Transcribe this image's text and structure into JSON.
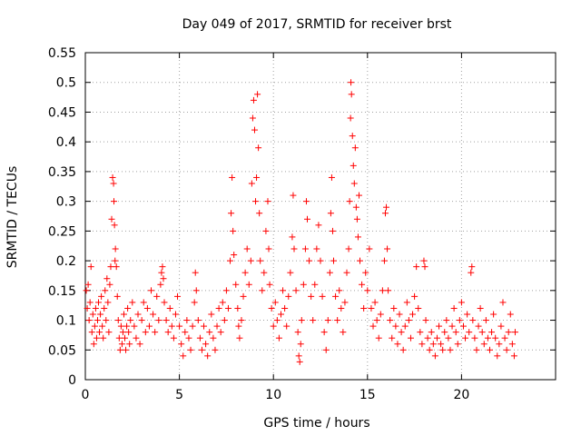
{
  "chart_data": {
    "type": "scatter",
    "title": "Day 049 of 2017, SRMTID for receiver brst",
    "xlabel": "GPS time / hours",
    "ylabel": "SRMTID / TECUs",
    "xlim": [
      0,
      25
    ],
    "ylim": [
      0,
      0.55
    ],
    "xticks": [
      0,
      5,
      10,
      15,
      20
    ],
    "xtick_labels": [
      "0",
      "5",
      "10",
      "15",
      "20"
    ],
    "yticks": [
      0,
      0.05,
      0.1,
      0.15,
      0.2,
      0.25,
      0.3,
      0.35,
      0.4,
      0.45,
      0.5,
      0.55
    ],
    "ytick_labels": [
      "0",
      "0.05",
      "0.1",
      "0.15",
      "0.2",
      "0.25",
      "0.3",
      "0.35",
      "0.4",
      "0.45",
      "0.5",
      "0.55"
    ],
    "grid": true,
    "marker": "+",
    "color": "#ff0000",
    "series": [
      {
        "name": "SRMTID",
        "points": [
          [
            0.05,
            0.15
          ],
          [
            0.1,
            0.12
          ],
          [
            0.15,
            0.16
          ],
          [
            0.2,
            0.1
          ],
          [
            0.25,
            0.13
          ],
          [
            0.3,
            0.19
          ],
          [
            0.35,
            0.08
          ],
          [
            0.4,
            0.11
          ],
          [
            0.45,
            0.06
          ],
          [
            0.5,
            0.09
          ],
          [
            0.55,
            0.12
          ],
          [
            0.6,
            0.07
          ],
          [
            0.65,
            0.1
          ],
          [
            0.7,
            0.13
          ],
          [
            0.75,
            0.08
          ],
          [
            0.8,
            0.11
          ],
          [
            0.85,
            0.14
          ],
          [
            0.9,
            0.09
          ],
          [
            0.95,
            0.07
          ],
          [
            1.0,
            0.12
          ],
          [
            1.05,
            0.15
          ],
          [
            1.1,
            0.1
          ],
          [
            1.15,
            0.17
          ],
          [
            1.2,
            0.13
          ],
          [
            1.25,
            0.08
          ],
          [
            1.3,
            0.16
          ],
          [
            1.35,
            0.19
          ],
          [
            1.4,
            0.27
          ],
          [
            1.45,
            0.34
          ],
          [
            1.5,
            0.33
          ],
          [
            1.52,
            0.3
          ],
          [
            1.55,
            0.26
          ],
          [
            1.58,
            0.2
          ],
          [
            1.6,
            0.22
          ],
          [
            1.65,
            0.19
          ],
          [
            1.7,
            0.14
          ],
          [
            1.75,
            0.1
          ],
          [
            1.8,
            0.07
          ],
          [
            1.85,
            0.05
          ],
          [
            1.9,
            0.09
          ],
          [
            1.95,
            0.06
          ],
          [
            2.0,
            0.08
          ],
          [
            2.05,
            0.11
          ],
          [
            2.1,
            0.07
          ],
          [
            2.15,
            0.05
          ],
          [
            2.2,
            0.09
          ],
          [
            2.25,
            0.12
          ],
          [
            2.3,
            0.08
          ],
          [
            2.35,
            0.06
          ],
          [
            2.4,
            0.1
          ],
          [
            2.5,
            0.13
          ],
          [
            2.6,
            0.09
          ],
          [
            2.7,
            0.07
          ],
          [
            2.8,
            0.11
          ],
          [
            2.9,
            0.06
          ],
          [
            3.0,
            0.1
          ],
          [
            3.1,
            0.13
          ],
          [
            3.2,
            0.08
          ],
          [
            3.3,
            0.12
          ],
          [
            3.4,
            0.09
          ],
          [
            3.5,
            0.15
          ],
          [
            3.6,
            0.11
          ],
          [
            3.7,
            0.08
          ],
          [
            3.8,
            0.14
          ],
          [
            3.9,
            0.1
          ],
          [
            4.0,
            0.16
          ],
          [
            4.05,
            0.18
          ],
          [
            4.1,
            0.19
          ],
          [
            4.15,
            0.17
          ],
          [
            4.2,
            0.13
          ],
          [
            4.3,
            0.1
          ],
          [
            4.4,
            0.08
          ],
          [
            4.5,
            0.12
          ],
          [
            4.6,
            0.09
          ],
          [
            4.7,
            0.07
          ],
          [
            4.8,
            0.11
          ],
          [
            4.9,
            0.14
          ],
          [
            5.0,
            0.09
          ],
          [
            5.1,
            0.06
          ],
          [
            5.2,
            0.04
          ],
          [
            5.3,
            0.08
          ],
          [
            5.4,
            0.1
          ],
          [
            5.5,
            0.07
          ],
          [
            5.6,
            0.05
          ],
          [
            5.7,
            0.09
          ],
          [
            5.8,
            0.13
          ],
          [
            5.85,
            0.18
          ],
          [
            5.9,
            0.15
          ],
          [
            6.0,
            0.1
          ],
          [
            6.1,
            0.07
          ],
          [
            6.2,
            0.05
          ],
          [
            6.3,
            0.09
          ],
          [
            6.4,
            0.06
          ],
          [
            6.5,
            0.04
          ],
          [
            6.6,
            0.08
          ],
          [
            6.7,
            0.11
          ],
          [
            6.8,
            0.07
          ],
          [
            6.9,
            0.05
          ],
          [
            7.0,
            0.09
          ],
          [
            7.1,
            0.12
          ],
          [
            7.2,
            0.08
          ],
          [
            7.3,
            0.13
          ],
          [
            7.4,
            0.1
          ],
          [
            7.5,
            0.15
          ],
          [
            7.6,
            0.12
          ],
          [
            7.7,
            0.2
          ],
          [
            7.75,
            0.28
          ],
          [
            7.8,
            0.34
          ],
          [
            7.85,
            0.25
          ],
          [
            7.9,
            0.21
          ],
          [
            8.0,
            0.16
          ],
          [
            8.1,
            0.12
          ],
          [
            8.15,
            0.09
          ],
          [
            8.2,
            0.07
          ],
          [
            8.3,
            0.1
          ],
          [
            8.4,
            0.14
          ],
          [
            8.5,
            0.18
          ],
          [
            8.6,
            0.22
          ],
          [
            8.7,
            0.16
          ],
          [
            8.8,
            0.2
          ],
          [
            8.85,
            0.33
          ],
          [
            8.9,
            0.44
          ],
          [
            8.95,
            0.47
          ],
          [
            9.0,
            0.42
          ],
          [
            9.05,
            0.3
          ],
          [
            9.1,
            0.34
          ],
          [
            9.15,
            0.48
          ],
          [
            9.2,
            0.39
          ],
          [
            9.25,
            0.28
          ],
          [
            9.3,
            0.2
          ],
          [
            9.4,
            0.15
          ],
          [
            9.5,
            0.18
          ],
          [
            9.6,
            0.25
          ],
          [
            9.7,
            0.3
          ],
          [
            9.75,
            0.22
          ],
          [
            9.8,
            0.16
          ],
          [
            9.9,
            0.12
          ],
          [
            10.0,
            0.09
          ],
          [
            10.1,
            0.13
          ],
          [
            10.2,
            0.1
          ],
          [
            10.3,
            0.07
          ],
          [
            10.4,
            0.11
          ],
          [
            10.5,
            0.15
          ],
          [
            10.6,
            0.12
          ],
          [
            10.7,
            0.09
          ],
          [
            10.8,
            0.14
          ],
          [
            10.9,
            0.18
          ],
          [
            11.0,
            0.24
          ],
          [
            11.05,
            0.31
          ],
          [
            11.1,
            0.22
          ],
          [
            11.2,
            0.15
          ],
          [
            11.3,
            0.08
          ],
          [
            11.35,
            0.04
          ],
          [
            11.4,
            0.03
          ],
          [
            11.45,
            0.06
          ],
          [
            11.5,
            0.1
          ],
          [
            11.6,
            0.16
          ],
          [
            11.7,
            0.22
          ],
          [
            11.75,
            0.3
          ],
          [
            11.8,
            0.27
          ],
          [
            11.9,
            0.2
          ],
          [
            12.0,
            0.14
          ],
          [
            12.1,
            0.1
          ],
          [
            12.2,
            0.16
          ],
          [
            12.3,
            0.22
          ],
          [
            12.4,
            0.26
          ],
          [
            12.5,
            0.2
          ],
          [
            12.6,
            0.14
          ],
          [
            12.7,
            0.08
          ],
          [
            12.8,
            0.05
          ],
          [
            12.9,
            0.1
          ],
          [
            13.0,
            0.18
          ],
          [
            13.05,
            0.28
          ],
          [
            13.1,
            0.34
          ],
          [
            13.15,
            0.25
          ],
          [
            13.2,
            0.2
          ],
          [
            13.3,
            0.14
          ],
          [
            13.4,
            0.1
          ],
          [
            13.5,
            0.15
          ],
          [
            13.6,
            0.12
          ],
          [
            13.7,
            0.08
          ],
          [
            13.8,
            0.13
          ],
          [
            13.9,
            0.18
          ],
          [
            14.0,
            0.22
          ],
          [
            14.05,
            0.3
          ],
          [
            14.1,
            0.44
          ],
          [
            14.12,
            0.5
          ],
          [
            14.15,
            0.48
          ],
          [
            14.2,
            0.41
          ],
          [
            14.25,
            0.36
          ],
          [
            14.3,
            0.33
          ],
          [
            14.35,
            0.39
          ],
          [
            14.4,
            0.29
          ],
          [
            14.45,
            0.27
          ],
          [
            14.5,
            0.24
          ],
          [
            14.55,
            0.31
          ],
          [
            14.6,
            0.2
          ],
          [
            14.7,
            0.16
          ],
          [
            14.8,
            0.12
          ],
          [
            14.9,
            0.18
          ],
          [
            15.0,
            0.15
          ],
          [
            15.1,
            0.22
          ],
          [
            15.2,
            0.12
          ],
          [
            15.3,
            0.09
          ],
          [
            15.4,
            0.13
          ],
          [
            15.5,
            0.1
          ],
          [
            15.6,
            0.07
          ],
          [
            15.7,
            0.11
          ],
          [
            15.8,
            0.15
          ],
          [
            15.9,
            0.2
          ],
          [
            15.95,
            0.28
          ],
          [
            16.0,
            0.29
          ],
          [
            16.05,
            0.22
          ],
          [
            16.1,
            0.15
          ],
          [
            16.2,
            0.1
          ],
          [
            16.3,
            0.07
          ],
          [
            16.4,
            0.12
          ],
          [
            16.5,
            0.09
          ],
          [
            16.6,
            0.06
          ],
          [
            16.7,
            0.11
          ],
          [
            16.8,
            0.08
          ],
          [
            16.9,
            0.05
          ],
          [
            17.0,
            0.09
          ],
          [
            17.1,
            0.13
          ],
          [
            17.2,
            0.1
          ],
          [
            17.3,
            0.07
          ],
          [
            17.4,
            0.11
          ],
          [
            17.5,
            0.14
          ],
          [
            17.6,
            0.19
          ],
          [
            17.7,
            0.12
          ],
          [
            17.8,
            0.08
          ],
          [
            17.9,
            0.06
          ],
          [
            18.0,
            0.2
          ],
          [
            18.05,
            0.19
          ],
          [
            18.1,
            0.1
          ],
          [
            18.2,
            0.07
          ],
          [
            18.3,
            0.05
          ],
          [
            18.4,
            0.08
          ],
          [
            18.5,
            0.06
          ],
          [
            18.6,
            0.04
          ],
          [
            18.7,
            0.07
          ],
          [
            18.8,
            0.09
          ],
          [
            18.9,
            0.06
          ],
          [
            19.0,
            0.05
          ],
          [
            19.1,
            0.08
          ],
          [
            19.2,
            0.1
          ],
          [
            19.3,
            0.07
          ],
          [
            19.4,
            0.05
          ],
          [
            19.5,
            0.09
          ],
          [
            19.6,
            0.12
          ],
          [
            19.7,
            0.08
          ],
          [
            19.8,
            0.06
          ],
          [
            19.9,
            0.1
          ],
          [
            20.0,
            0.13
          ],
          [
            20.1,
            0.09
          ],
          [
            20.2,
            0.07
          ],
          [
            20.3,
            0.11
          ],
          [
            20.4,
            0.08
          ],
          [
            20.5,
            0.18
          ],
          [
            20.55,
            0.19
          ],
          [
            20.6,
            0.1
          ],
          [
            20.7,
            0.07
          ],
          [
            20.8,
            0.05
          ],
          [
            20.9,
            0.09
          ],
          [
            21.0,
            0.12
          ],
          [
            21.1,
            0.08
          ],
          [
            21.2,
            0.06
          ],
          [
            21.3,
            0.1
          ],
          [
            21.4,
            0.07
          ],
          [
            21.5,
            0.05
          ],
          [
            21.6,
            0.08
          ],
          [
            21.7,
            0.11
          ],
          [
            21.8,
            0.07
          ],
          [
            21.9,
            0.04
          ],
          [
            22.0,
            0.06
          ],
          [
            22.1,
            0.09
          ],
          [
            22.2,
            0.13
          ],
          [
            22.3,
            0.07
          ],
          [
            22.4,
            0.05
          ],
          [
            22.5,
            0.08
          ],
          [
            22.6,
            0.11
          ],
          [
            22.7,
            0.06
          ],
          [
            22.8,
            0.04
          ],
          [
            22.85,
            0.08
          ]
        ]
      }
    ]
  }
}
